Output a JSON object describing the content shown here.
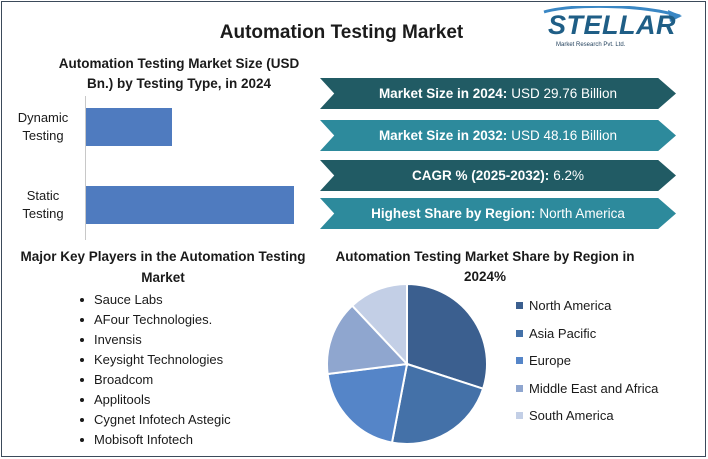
{
  "title": "Automation Testing Market",
  "logo": {
    "word": "STELLAR",
    "sub": "Market Research Pvt. Ltd."
  },
  "colors": {
    "bar": "#4f7bbf",
    "banner_dark": "#215b64",
    "banner_light": "#2d8a9c"
  },
  "banners": [
    {
      "label": "Market Size in 2024:",
      "value": "USD 29.76 Billion",
      "style": "dark"
    },
    {
      "label": "Market Size in 2032:",
      "value": "USD 48.16 Billion",
      "style": "light"
    },
    {
      "label": "CAGR % (2025-2032):",
      "value": "6.2%",
      "style": "dark"
    },
    {
      "label": "Highest Share by Region:",
      "value": "North America",
      "style": "light"
    }
  ],
  "players": {
    "title": "Major Key Players in the Automation Testing Market",
    "items": [
      "Sauce Labs",
      "AFour Technologies.",
      "Invensis",
      "Keysight Technologies",
      "Broadcom",
      "Applitools",
      "Cygnet Infotech Astegic",
      "Mobisoft Infotech"
    ]
  },
  "chart_data": [
    {
      "type": "bar",
      "orientation": "horizontal",
      "title": "Automation Testing Market Size (USD Bn.) by Testing Type, in 2024",
      "categories": [
        "Dynamic Testing",
        "Static Testing"
      ],
      "values": [
        10.8,
        26.0
      ],
      "xlim": [
        0,
        30
      ],
      "grid": false
    },
    {
      "type": "pie",
      "title": "Automation Testing Market Share by Region in 2024%",
      "labels": [
        "North America",
        "Asia Pacific",
        "Europe",
        "Middle East and Africa",
        "South America"
      ],
      "values": [
        30,
        23,
        20,
        15,
        12
      ],
      "colors": [
        "#3b5f8f",
        "#4471a8",
        "#5585c8",
        "#8fa6cf",
        "#c3cfe6"
      ],
      "legend": "right"
    }
  ]
}
